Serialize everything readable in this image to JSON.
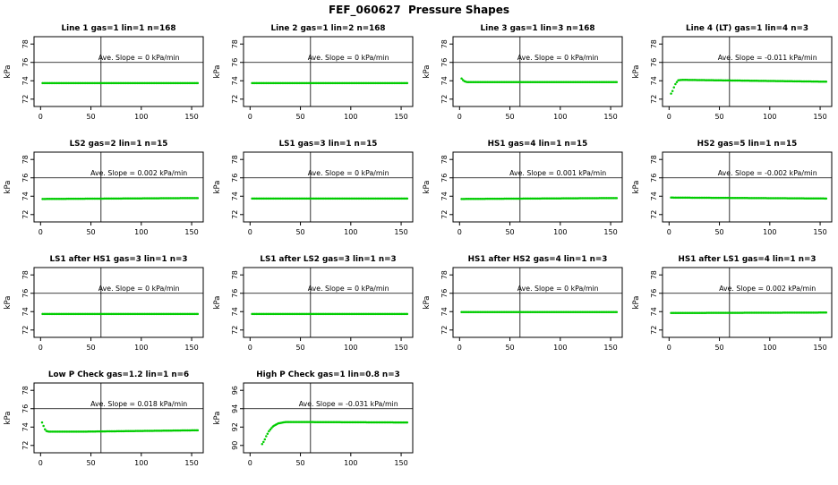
{
  "title": "FEF_060627  Pressure Shapes",
  "chart_defaults": {
    "type": "scatter",
    "ylabel": "kPa",
    "xlabel": "",
    "xticks": [
      0,
      50,
      100,
      150
    ],
    "xlim": [
      -6.5,
      161.5
    ],
    "yticks": [
      72,
      74,
      76,
      78
    ],
    "ylim": [
      71.2,
      78.8
    ],
    "hline_y": 76,
    "vline_x": 60,
    "color": "#00cc00",
    "grid": false,
    "legend": "none"
  },
  "chart_data": [
    {
      "title": "Line 1 gas=1 lin=1 n=168",
      "annotation": "Ave. Slope =  0 kPa/min",
      "points": [
        [
          2,
          73.75
        ],
        [
          156,
          73.75
        ]
      ]
    },
    {
      "title": "Line 2 gas=1 lin=2 n=168",
      "annotation": "Ave. Slope =  0 kPa/min",
      "points": [
        [
          2,
          73.75
        ],
        [
          156,
          73.75
        ]
      ]
    },
    {
      "title": "Line 3 gas=1 lin=3 n=168",
      "annotation": "Ave. Slope =  0 kPa/min",
      "points": [
        [
          2,
          74.25
        ],
        [
          4,
          74.0
        ],
        [
          7,
          73.85
        ],
        [
          156,
          73.85
        ]
      ]
    },
    {
      "title": "Line 4 (LT) gas=1 lin=4 n=3",
      "annotation": "Ave. Slope = -0.011 kPa/min",
      "points": [
        [
          2,
          72.6
        ],
        [
          3.5,
          72.9
        ],
        [
          6,
          73.6
        ],
        [
          9,
          74.05
        ],
        [
          13,
          74.1
        ],
        [
          156,
          73.9
        ]
      ]
    },
    {
      "title": "LS2 gas=2 lin=1 n=15",
      "annotation": "Ave. Slope = 0.002 kPa/min",
      "points": [
        [
          2,
          73.7
        ],
        [
          156,
          73.8
        ]
      ]
    },
    {
      "title": "LS1 gas=3 lin=1 n=15",
      "annotation": "Ave. Slope = 0 kPa/min",
      "points": [
        [
          2,
          73.75
        ],
        [
          156,
          73.75
        ]
      ]
    },
    {
      "title": "HS1 gas=4 lin=1 n=15",
      "annotation": "Ave. Slope = 0.001 kPa/min",
      "points": [
        [
          2,
          73.7
        ],
        [
          156,
          73.8
        ]
      ]
    },
    {
      "title": "HS2 gas=5 lin=1 n=15",
      "annotation": "Ave. Slope = -0.002 kPa/min",
      "points": [
        [
          2,
          73.85
        ],
        [
          156,
          73.75
        ]
      ]
    },
    {
      "title": "LS1 after HS1 gas=3 lin=1 n=3",
      "annotation": "Ave. Slope = 0 kPa/min",
      "points": [
        [
          2,
          73.75
        ],
        [
          156,
          73.75
        ]
      ]
    },
    {
      "title": "LS1 after LS2 gas=3 lin=1 n=3",
      "annotation": "Ave. Slope = 0 kPa/min",
      "points": [
        [
          2,
          73.75
        ],
        [
          156,
          73.75
        ]
      ]
    },
    {
      "title": "HS1 after HS2 gas=4 lin=1 n=3",
      "annotation": "Ave. Slope = 0 kPa/min",
      "points": [
        [
          2,
          73.95
        ],
        [
          156,
          73.95
        ]
      ]
    },
    {
      "title": "HS1 after LS1 gas=4 lin=1 n=3",
      "annotation": "Ave. Slope = 0.002 kPa/min",
      "points": [
        [
          2,
          73.85
        ],
        [
          156,
          73.9
        ]
      ]
    },
    {
      "title": "Low P Check gas=1.2 lin=1 n=6",
      "annotation": "Ave. Slope = 0.018 kPa/min",
      "points": [
        [
          1.5,
          74.5
        ],
        [
          3,
          74.1
        ],
        [
          5,
          73.6
        ],
        [
          8,
          73.5
        ],
        [
          40,
          73.5
        ],
        [
          156,
          73.65
        ]
      ]
    },
    {
      "title": "High P Check gas=1 lin=0.8 n=3",
      "annotation": "Ave. Slope = -0.031 kPa/min",
      "yticks": [
        90,
        92,
        94,
        96
      ],
      "ylim": [
        89.2,
        96.8
      ],
      "hline_y": 94,
      "points": [
        [
          12,
          90.15
        ],
        [
          14,
          90.5
        ],
        [
          16,
          91.0
        ],
        [
          19,
          91.6
        ],
        [
          23,
          92.1
        ],
        [
          28,
          92.4
        ],
        [
          35,
          92.55
        ],
        [
          50,
          92.55
        ],
        [
          156,
          92.5
        ]
      ]
    }
  ]
}
